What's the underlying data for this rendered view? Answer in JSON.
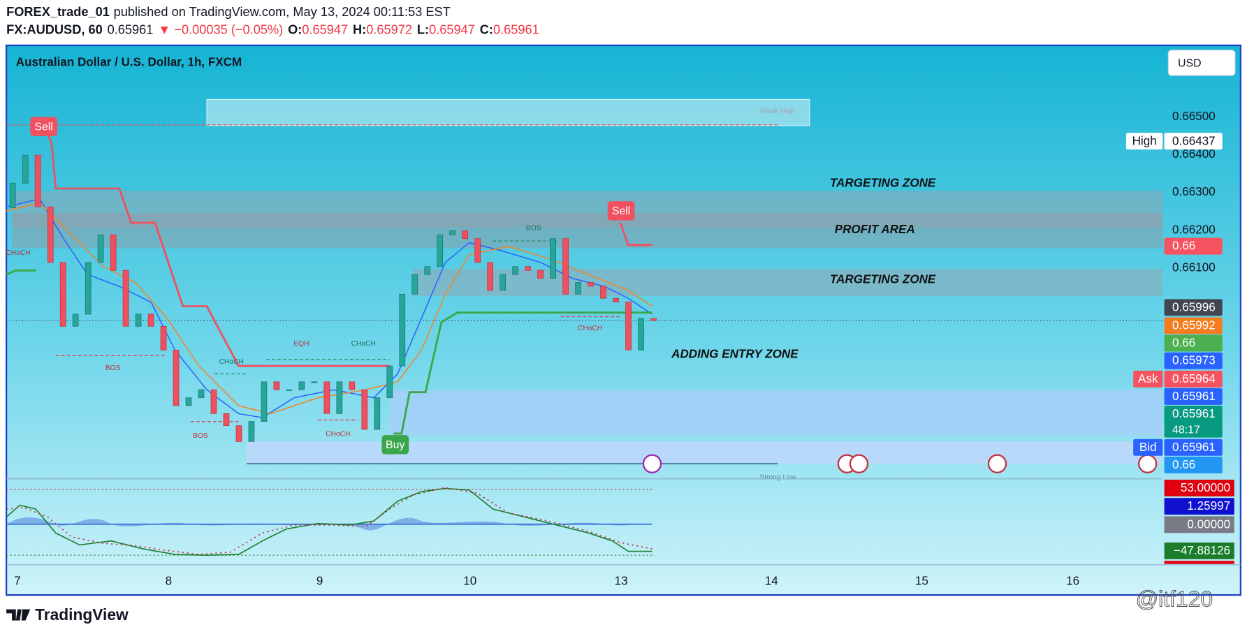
{
  "header": {
    "author": "FOREX_trade_01",
    "published": "published on TradingView.com, May 13, 2024 00:11:53 EST",
    "symbol": "FX:AUDUSD, 60",
    "last": "0.65961",
    "change": "▼ −0.00035 (−0.05%)",
    "ohlc": [
      {
        "label": "O:",
        "value": "0.65947"
      },
      {
        "label": "H:",
        "value": "0.65972"
      },
      {
        "label": "L:",
        "value": "0.65947"
      },
      {
        "label": "C:",
        "value": "0.65961"
      }
    ]
  },
  "chart": {
    "title": "Australian Dollar / U.S. Dollar, 1h, FXCM",
    "currency": "USD",
    "price_scale": [
      {
        "value": 0.665,
        "label": "0.66500"
      },
      {
        "value": 0.664,
        "label": "0.66400"
      },
      {
        "value": 0.663,
        "label": "0.66300"
      },
      {
        "value": 0.662,
        "label": "0.66200"
      },
      {
        "value": 0.661,
        "label": "0.66100"
      }
    ],
    "time_axis": [
      "7",
      "8",
      "9",
      "10",
      "13",
      "14",
      "15",
      "16"
    ],
    "candles": {
      "open": 0.6626,
      "close": [
        0.66325,
        0.66399,
        0.66262,
        0.66115,
        0.65946,
        0.65978,
        0.66115,
        0.66188,
        0.66094,
        0.65946,
        0.65978,
        0.65946,
        0.65883,
        0.65736,
        0.65757,
        0.65778,
        0.65715,
        0.65683,
        0.65641,
        0.65694,
        0.65799,
        0.65778,
        0.65778,
        0.65799,
        0.65799,
        0.65715,
        0.65799,
        0.65778,
        0.65673,
        0.65757,
        0.65841,
        0.66031,
        0.66083,
        0.66104,
        0.66188,
        0.66199,
        0.66178,
        0.66115,
        0.66041,
        0.66083,
        0.66104,
        0.66094,
        0.66073,
        0.66178,
        0.66031,
        0.66062,
        0.66052,
        0.6602,
        0.6601,
        0.65883,
        0.65967,
        0.65961
      ]
    },
    "zones": [
      "TARGETING ZONE",
      "PROFIT AREA",
      "TARGETING ZONE",
      "ADDING ENTRY ZONE"
    ],
    "annotations": [
      "CHoCH",
      "BOS",
      "CHoCH",
      "EQH",
      "CHoCH",
      "BOS",
      "CHoCH",
      "BOS",
      "CHoCH",
      "Weak High",
      "Strong Low"
    ],
    "signals": [
      "Sell",
      "Sell",
      "Buy"
    ],
    "price_tags": [
      {
        "label": "High",
        "value": "0.66437"
      },
      {
        "value": "0.66"
      },
      {
        "value": "0.65996"
      },
      {
        "value": "0.65992"
      },
      {
        "value": "0.66"
      },
      {
        "value": "0.65973"
      },
      {
        "label": "Ask",
        "value": "0.65964"
      },
      {
        "value": "0.65961"
      },
      {
        "value": "0.65961",
        "extra": "48:17"
      },
      {
        "label": "Bid",
        "value": "0.65961"
      },
      {
        "value": "0.66"
      }
    ],
    "oscillator_tags": [
      "53.00000",
      "1.25997",
      "0.00000",
      "−47.88126"
    ]
  },
  "footer": {
    "brand": "TradingView",
    "watermark": "@itf120"
  }
}
